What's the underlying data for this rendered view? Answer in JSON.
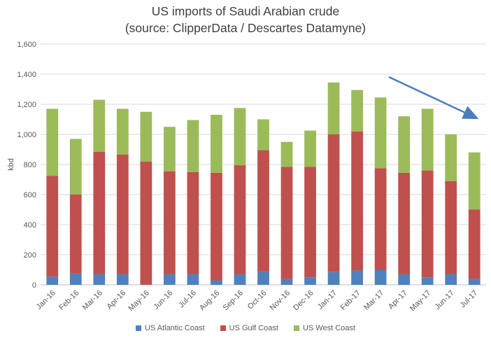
{
  "chart_data": {
    "type": "bar",
    "stacked": true,
    "title": "US imports of Saudi Arabian crude",
    "subtitle": "(source: ClipperData / Descartes Datamyne)",
    "xlabel": "",
    "ylabel": "kbd",
    "ylim": [
      0,
      1600
    ],
    "yticks": [
      "0",
      "200",
      "400",
      "600",
      "800",
      "1,000",
      "1,200",
      "1,400",
      "1,600"
    ],
    "grid": true,
    "legend_position": "bottom",
    "categories": [
      "Jan-16",
      "Feb-16",
      "Mar-16",
      "Apr-16",
      "May-16",
      "Jun-16",
      "Jul-16",
      "Aug-16",
      "Sep-16",
      "Oct-16",
      "Nov-16",
      "Dec-16",
      "Jan-17",
      "Feb-17",
      "Mar-17",
      "Apr-17",
      "May-17",
      "Jun-17",
      "Jul-17"
    ],
    "series": [
      {
        "name": "US Atlantic Coast",
        "color": "#4f81bd",
        "values": [
          55,
          75,
          70,
          70,
          0,
          70,
          70,
          30,
          70,
          90,
          40,
          50,
          85,
          95,
          100,
          70,
          50,
          70,
          40
        ]
      },
      {
        "name": "US Gulf Coast",
        "color": "#c0504d",
        "values": [
          670,
          525,
          815,
          795,
          820,
          685,
          680,
          715,
          725,
          805,
          745,
          735,
          915,
          925,
          675,
          675,
          710,
          620,
          460
        ]
      },
      {
        "name": "US West Coast",
        "color": "#9bbb59",
        "values": [
          445,
          370,
          345,
          305,
          330,
          295,
          345,
          385,
          380,
          205,
          165,
          240,
          345,
          275,
          470,
          375,
          410,
          310,
          380
        ]
      }
    ],
    "annotation": {
      "type": "arrow",
      "direction": "down-right",
      "color": "#4a7ebb"
    }
  }
}
